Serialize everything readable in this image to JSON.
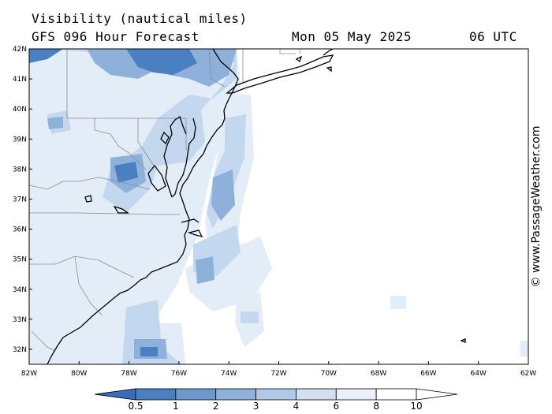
{
  "header": {
    "title": "Visibility (nautical miles)",
    "model": "GFS 096 Hour Forecast",
    "date": "Mon 05 May 2025",
    "time": "06 UTC"
  },
  "credit": "© www.PassageWeather.com",
  "map": {
    "lon_range": [
      -82,
      -62
    ],
    "lat_range": [
      31.5,
      42
    ],
    "lat_labels": [
      "42N",
      "41N",
      "40N",
      "39N",
      "38N",
      "37N",
      "36N",
      "35N",
      "34N",
      "33N",
      "32N"
    ],
    "lat_values": [
      42,
      41,
      40,
      39,
      38,
      37,
      36,
      35,
      34,
      33,
      32
    ],
    "lon_labels": [
      "82W",
      "80W",
      "78W",
      "76W",
      "74W",
      "72W",
      "70W",
      "68W",
      "66W",
      "64W",
      "62W"
    ],
    "lon_values": [
      -82,
      -80,
      -78,
      -76,
      -74,
      -72,
      -70,
      -68,
      -66,
      -64,
      -62
    ]
  },
  "legend": {
    "levels": [
      "0.5",
      "1",
      "2",
      "3",
      "4",
      "6",
      "8",
      "10"
    ],
    "colors": [
      "#3a6db5",
      "#4a7fc1",
      "#6b98cf",
      "#8eb1dc",
      "#b1c9e8",
      "#d2e0f2",
      "#eaf1fa",
      "#ffffff"
    ]
  }
}
